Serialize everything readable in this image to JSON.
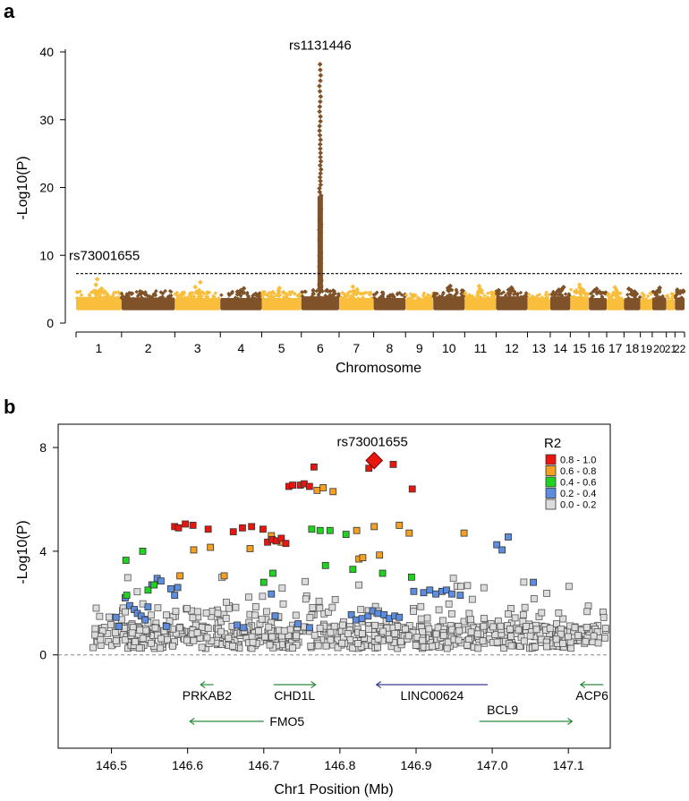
{
  "panel_a": {
    "letter": "a",
    "chart_data": {
      "type": "scatter",
      "subtype": "manhattan",
      "xlabel": "Chromosome",
      "ylabel": "-Log10(P)",
      "ylim": [
        0,
        40
      ],
      "yticks": [
        0,
        10,
        20,
        30,
        40
      ],
      "threshold": 7.3,
      "colors": [
        "#F8BE3C",
        "#7F5229"
      ],
      "chromosomes": [
        {
          "label": "1",
          "start": 0,
          "end": 1,
          "base_max": 4.7,
          "peak": 7.6
        },
        {
          "label": "2",
          "start": 1,
          "end": 2.17,
          "base_max": 4.6
        },
        {
          "label": "3",
          "start": 2.17,
          "end": 3.17,
          "base_max": 4.5,
          "peak": 7.0
        },
        {
          "label": "4",
          "start": 3.17,
          "end": 4.08,
          "base_max": 4.5,
          "peak": 5.5
        },
        {
          "label": "5",
          "start": 4.08,
          "end": 4.95,
          "base_max": 4.5,
          "peak": 5.6
        },
        {
          "label": "6",
          "start": 4.95,
          "end": 5.78,
          "base_max": 4.8,
          "peak": 39.0
        },
        {
          "label": "7",
          "start": 5.78,
          "end": 6.54,
          "base_max": 4.5,
          "peak": 5.9
        },
        {
          "label": "8",
          "start": 6.54,
          "end": 7.24,
          "base_max": 4.5
        },
        {
          "label": "9",
          "start": 7.24,
          "end": 7.85,
          "base_max": 4.3
        },
        {
          "label": "10",
          "start": 7.85,
          "end": 8.54,
          "base_max": 4.8,
          "peak": 5.9
        },
        {
          "label": "11",
          "start": 8.54,
          "end": 9.23,
          "base_max": 4.6,
          "peak": 6.0
        },
        {
          "label": "12",
          "start": 9.23,
          "end": 9.92,
          "base_max": 4.8,
          "peak": 5.5
        },
        {
          "label": "13",
          "start": 9.92,
          "end": 10.42,
          "base_max": 4.4
        },
        {
          "label": "14",
          "start": 10.42,
          "end": 10.86,
          "base_max": 4.8,
          "peak": 5.6
        },
        {
          "label": "15",
          "start": 10.86,
          "end": 11.27,
          "base_max": 4.8,
          "peak": 6.2
        },
        {
          "label": "16",
          "start": 11.27,
          "end": 11.66,
          "base_max": 4.5,
          "peak": 5.4
        },
        {
          "label": "17",
          "start": 11.66,
          "end": 12.04,
          "base_max": 4.4,
          "peak": 5.8
        },
        {
          "label": "18",
          "start": 12.04,
          "end": 12.4,
          "base_max": 4.5,
          "peak": 5.4
        },
        {
          "label": "19",
          "start": 12.4,
          "end": 12.66,
          "base_max": 4.3
        },
        {
          "label": "20",
          "start": 12.66,
          "end": 12.97,
          "base_max": 4.6,
          "peak": 5.6
        },
        {
          "label": "21",
          "start": 12.97,
          "end": 13.16,
          "base_max": 4.2
        },
        {
          "label": "22",
          "start": 13.16,
          "end": 13.37,
          "base_max": 4.6,
          "peak": 5.1
        }
      ],
      "annotations": [
        {
          "text": "rs1131446",
          "chrom": "6",
          "y": 39.0
        },
        {
          "text": "rs73001655",
          "chrom": "1",
          "y": 7.6
        }
      ]
    }
  },
  "panel_b": {
    "letter": "b",
    "chart_data": {
      "type": "scatter",
      "subtype": "regional-association",
      "xlabel": "Chr1 Position (Mb)",
      "ylabel": "-Log10(P)",
      "xlim": [
        146.43,
        147.155
      ],
      "ylim": [
        -3.6,
        8.9
      ],
      "xticks": [
        146.5,
        146.6,
        146.7,
        146.8,
        146.9,
        147.0,
        147.1
      ],
      "yticks": [
        0,
        4,
        8
      ],
      "lead_snp": {
        "label": "rs73001655",
        "x": 146.845,
        "y": 7.5
      },
      "legend": {
        "title": "R2",
        "items": [
          {
            "label": "0.8 - 1.0",
            "color": "#E8160E"
          },
          {
            "label": "0.6 - 0.8",
            "color": "#F4A023"
          },
          {
            "label": "0.4 - 0.6",
            "color": "#1FD41F"
          },
          {
            "label": "0.2 - 0.4",
            "color": "#5C8DDE"
          },
          {
            "label": "0.0 - 0.2",
            "color": "#DCDCDC"
          }
        ]
      },
      "series": [
        {
          "name": "0.8 - 1.0",
          "color": "#E8160E",
          "points": [
            [
              146.583,
              4.95
            ],
            [
              146.588,
              4.9
            ],
            [
              146.597,
              5.05
            ],
            [
              146.607,
              5.0
            ],
            [
              146.627,
              4.85
            ],
            [
              146.66,
              4.75
            ],
            [
              146.672,
              4.9
            ],
            [
              146.684,
              4.95
            ],
            [
              146.699,
              4.85
            ],
            [
              146.705,
              4.35
            ],
            [
              146.711,
              4.45
            ],
            [
              146.717,
              4.4
            ],
            [
              146.723,
              4.5
            ],
            [
              146.729,
              4.3
            ],
            [
              146.733,
              6.5
            ],
            [
              146.738,
              6.55
            ],
            [
              146.748,
              6.55
            ],
            [
              146.753,
              6.6
            ],
            [
              146.76,
              6.5
            ],
            [
              146.766,
              7.25
            ],
            [
              146.838,
              7.2
            ],
            [
              146.87,
              7.35
            ],
            [
              146.895,
              6.4
            ]
          ]
        },
        {
          "name": "0.6 - 0.8",
          "color": "#F4A023",
          "points": [
            [
              146.59,
              3.05
            ],
            [
              146.608,
              4.05
            ],
            [
              146.63,
              4.15
            ],
            [
              146.648,
              3.05
            ],
            [
              146.682,
              4.1
            ],
            [
              146.71,
              4.6
            ],
            [
              146.716,
              4.4
            ],
            [
              146.723,
              4.35
            ],
            [
              146.77,
              6.35
            ],
            [
              146.778,
              6.45
            ],
            [
              146.791,
              6.3
            ],
            [
              146.822,
              4.8
            ],
            [
              146.825,
              3.7
            ],
            [
              146.83,
              3.75
            ],
            [
              146.845,
              4.95
            ],
            [
              146.852,
              3.85
            ],
            [
              146.878,
              5.0
            ],
            [
              146.891,
              4.7
            ],
            [
              146.963,
              4.7
            ]
          ]
        },
        {
          "name": "0.4 - 0.6",
          "color": "#1FD41F",
          "points": [
            [
              146.519,
              3.65
            ],
            [
              146.52,
              2.3
            ],
            [
              146.541,
              4.0
            ],
            [
              146.548,
              2.5
            ],
            [
              146.556,
              2.7
            ],
            [
              146.7,
              2.8
            ],
            [
              146.712,
              3.15
            ],
            [
              146.763,
              4.85
            ],
            [
              146.774,
              4.8
            ],
            [
              146.781,
              3.45
            ],
            [
              146.787,
              4.8
            ],
            [
              146.808,
              4.65
            ],
            [
              146.817,
              3.3
            ],
            [
              146.856,
              3.15
            ],
            [
              146.894,
              3.0
            ]
          ]
        },
        {
          "name": "0.2 - 0.4",
          "color": "#5C8DDE",
          "points": [
            [
              146.506,
              1.45
            ],
            [
              146.51,
              1.1
            ],
            [
              146.518,
              2.2
            ],
            [
              146.524,
              1.9
            ],
            [
              146.53,
              1.75
            ],
            [
              146.534,
              1.6
            ],
            [
              146.539,
              1.5
            ],
            [
              146.544,
              1.35
            ],
            [
              146.548,
              1.85
            ],
            [
              146.553,
              2.7
            ],
            [
              146.56,
              2.95
            ],
            [
              146.565,
              2.85
            ],
            [
              146.572,
              1.1
            ],
            [
              146.578,
              2.55
            ],
            [
              146.583,
              2.3
            ],
            [
              146.587,
              2.6
            ],
            [
              146.665,
              1.15
            ],
            [
              146.673,
              1.05
            ],
            [
              146.71,
              2.35
            ],
            [
              146.715,
              1.5
            ],
            [
              146.745,
              1.2
            ],
            [
              146.76,
              1.05
            ],
            [
              146.815,
              1.55
            ],
            [
              146.821,
              1.35
            ],
            [
              146.829,
              1.4
            ],
            [
              146.837,
              1.5
            ],
            [
              146.843,
              1.7
            ],
            [
              146.85,
              1.6
            ],
            [
              146.858,
              1.55
            ],
            [
              146.865,
              1.4
            ],
            [
              146.872,
              1.5
            ],
            [
              146.878,
              1.45
            ],
            [
              146.897,
              2.45
            ],
            [
              146.91,
              2.4
            ],
            [
              146.918,
              2.5
            ],
            [
              146.926,
              2.35
            ],
            [
              146.934,
              2.45
            ],
            [
              146.94,
              2.5
            ],
            [
              146.947,
              2.35
            ],
            [
              146.958,
              2.3
            ],
            [
              147.006,
              4.25
            ],
            [
              147.013,
              4.05
            ],
            [
              147.021,
              4.55
            ],
            [
              147.054,
              2.8
            ]
          ]
        }
      ],
      "background": {
        "name": "0.0 - 0.2",
        "color": "#DCDCDC",
        "count": 760,
        "start": 146.475,
        "end": 147.15
      },
      "genes": [
        {
          "name": "PRKAB2",
          "start": 146.617,
          "end": 146.634,
          "dir": -1,
          "row": 1,
          "color": "#2E8B3E"
        },
        {
          "name": "CHD1L",
          "start": 146.713,
          "end": 146.768,
          "dir": 1,
          "row": 1,
          "color": "#2E8B3E"
        },
        {
          "name": "LINC00624",
          "start": 146.848,
          "end": 146.994,
          "dir": -1,
          "row": 1,
          "color": "#3C3C96"
        },
        {
          "name": "ACP6",
          "start": 147.116,
          "end": 147.146,
          "dir": -1,
          "row": 1,
          "color": "#2E8B3E"
        },
        {
          "name": "FMO5",
          "start": 146.603,
          "end": 146.7,
          "dir": -1,
          "row": 2,
          "color": "#2E8B3E"
        },
        {
          "name": "BCL9",
          "start": 146.983,
          "end": 147.105,
          "dir": 1,
          "row": 2,
          "color": "#2E8B3E"
        }
      ]
    }
  }
}
